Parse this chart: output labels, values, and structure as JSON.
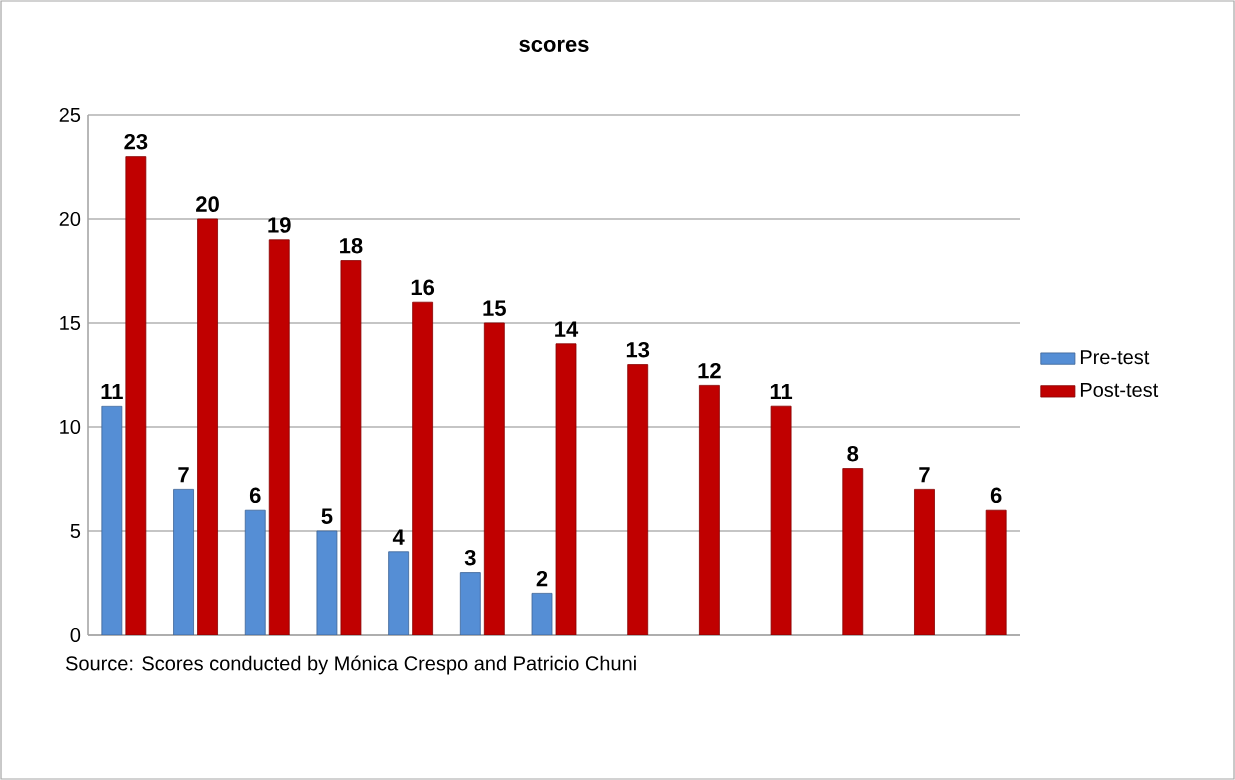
{
  "chart_data": {
    "type": "bar",
    "title": "scores",
    "categories": [
      null,
      null,
      null,
      null,
      null,
      null,
      null,
      null,
      null,
      null,
      null,
      null,
      null
    ],
    "series": [
      {
        "name": "Pre-test",
        "color": "#558ed5",
        "values": [
          11,
          7,
          6,
          5,
          4,
          3,
          2,
          null,
          null,
          null,
          null,
          null,
          null
        ]
      },
      {
        "name": "Post-test",
        "color": "#c00000",
        "values": [
          23,
          20,
          19,
          18,
          16,
          15,
          14,
          13,
          12,
          11,
          8,
          7,
          6
        ]
      }
    ],
    "ylim": [
      0,
      25
    ],
    "yticks": [
      0,
      5,
      10,
      15,
      20,
      25
    ],
    "grid": "y",
    "legend": "right",
    "data_labels": true,
    "annotations": [
      "Source: Scores conducted by Mónica Crespo and Patricio Chuni"
    ]
  }
}
